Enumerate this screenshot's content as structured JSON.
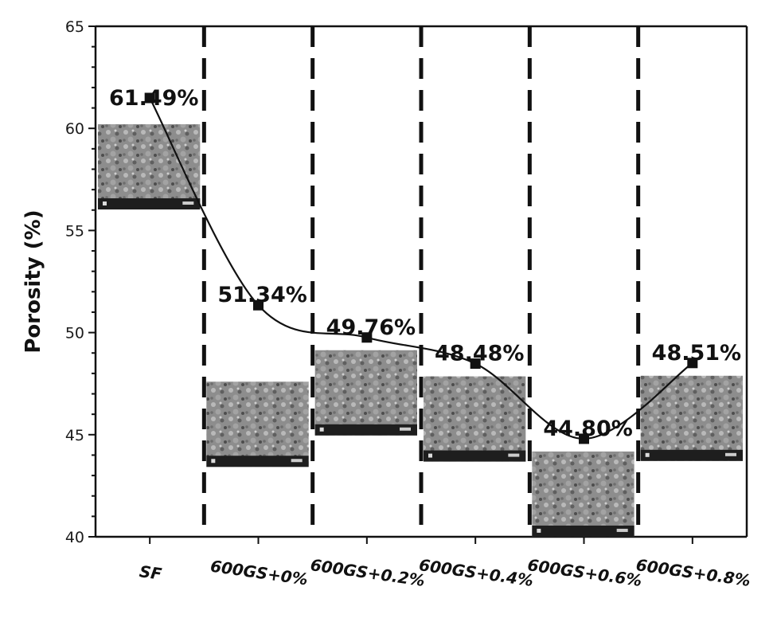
{
  "chart_data": {
    "type": "line",
    "ylabel": "Porosity (%)",
    "xlabel": "",
    "ylim": [
      40,
      65
    ],
    "yticks": [
      40,
      45,
      50,
      55,
      60,
      65
    ],
    "categories": [
      "SF",
      "600GS+0%",
      "600GS+0.2%",
      "600GS+0.4%",
      "600GS+0.6%",
      "600GS+0.8%"
    ],
    "values": [
      61.49,
      51.34,
      49.76,
      48.48,
      44.8,
      48.51
    ],
    "data_labels": [
      "61.49%",
      "51.34%",
      "49.76%",
      "48.48%",
      "44.80%",
      "48.51%"
    ],
    "grid": false,
    "category_separators": "dashed vertical lines",
    "insets": "SEM micrograph per category",
    "colors": {
      "line": "#111111",
      "marker": "#111111",
      "separator": "#111111"
    }
  }
}
